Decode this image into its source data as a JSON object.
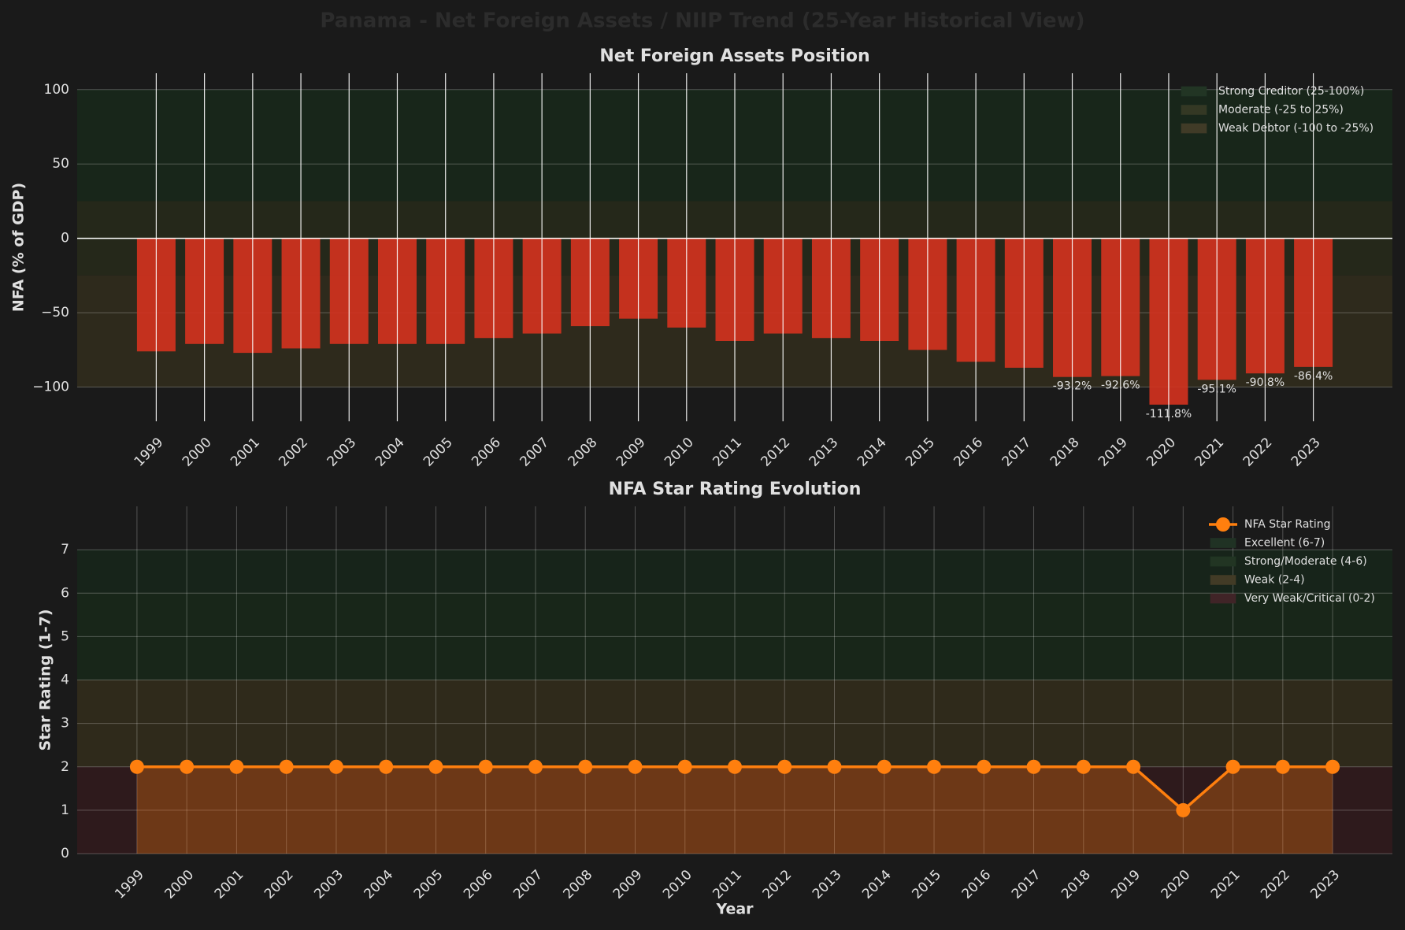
{
  "title": "Panama - Net Foreign Assets / NIIP Trend (25-Year Historical View)",
  "chart_data": [
    {
      "type": "bar",
      "title": "Net Foreign Assets Position",
      "y_label": "NFA (% of GDP)",
      "categories": [
        "1999",
        "2000",
        "2001",
        "2002",
        "2003",
        "2004",
        "2005",
        "2006",
        "2007",
        "2008",
        "2009",
        "2010",
        "2011",
        "2012",
        "2013",
        "2014",
        "2015",
        "2016",
        "2017",
        "2018",
        "2019",
        "2020",
        "2021",
        "2022",
        "2023"
      ],
      "values": [
        -76,
        -71,
        -77,
        -74,
        -71,
        -71,
        -71,
        -67,
        -64,
        -59,
        -54,
        -60,
        -69,
        -64,
        -67,
        -69,
        -75,
        -83,
        -87,
        -93.2,
        -92.6,
        -111.8,
        -95.1,
        -90.8,
        -86.4
      ],
      "value_labels": [
        null,
        null,
        null,
        null,
        null,
        null,
        null,
        null,
        null,
        null,
        null,
        null,
        null,
        null,
        null,
        null,
        null,
        null,
        null,
        "-93.2%",
        "-92.6%",
        "-111.8%",
        "-95.1%",
        "-90.8%",
        "-86.4%"
      ],
      "color": "#d5321f",
      "ylim": [
        -123,
        111
      ],
      "yticks": [
        {
          "value": -100,
          "label": "−100"
        },
        {
          "value": -50,
          "label": "−50"
        },
        0,
        50,
        100
      ],
      "grid": true,
      "bands": [
        {
          "name": "Strong Creditor (25-100%)",
          "range": [
            25,
            100
          ],
          "color": "#18261a"
        },
        {
          "name": "Moderate (-25 to 25%)",
          "range": [
            -25,
            25
          ],
          "color": "#25281a"
        },
        {
          "name": "Weak Debtor (-100 to -25%)",
          "range": [
            -100,
            -25
          ],
          "color": "#2e2a1c"
        }
      ],
      "legend": "upper right"
    },
    {
      "type": "line",
      "title": "NFA Star Rating Evolution",
      "x_label": "Year",
      "y_label": "Star Rating (1-7)",
      "categories": [
        "1999",
        "2000",
        "2001",
        "2002",
        "2003",
        "2004",
        "2005",
        "2006",
        "2007",
        "2008",
        "2009",
        "2010",
        "2011",
        "2012",
        "2013",
        "2014",
        "2015",
        "2016",
        "2017",
        "2018",
        "2019",
        "2020",
        "2021",
        "2022",
        "2023"
      ],
      "series": [
        {
          "name": "NFA Star Rating",
          "color": "#ff7f0e",
          "values": [
            2,
            2,
            2,
            2,
            2,
            2,
            2,
            2,
            2,
            2,
            2,
            2,
            2,
            2,
            2,
            2,
            2,
            2,
            2,
            2,
            2,
            1,
            2,
            2,
            2
          ]
        }
      ],
      "ylim": [
        0,
        8
      ],
      "yticks": [
        0,
        1,
        2,
        3,
        4,
        5,
        6,
        7
      ],
      "grid": true,
      "bands": [
        {
          "name": "Excellent (6-7)",
          "range": [
            6,
            7
          ],
          "color": "#17241a"
        },
        {
          "name": "Strong/Moderate (4-6)",
          "range": [
            4,
            6
          ],
          "color": "#182619"
        },
        {
          "name": "Weak (2-4)",
          "range": [
            2,
            4
          ],
          "color": "#2f2a1b"
        },
        {
          "name": "Very Weak/Critical (0-2)",
          "range": [
            0,
            2
          ],
          "color": "#2e1a1c"
        }
      ],
      "legend": "upper right"
    }
  ]
}
